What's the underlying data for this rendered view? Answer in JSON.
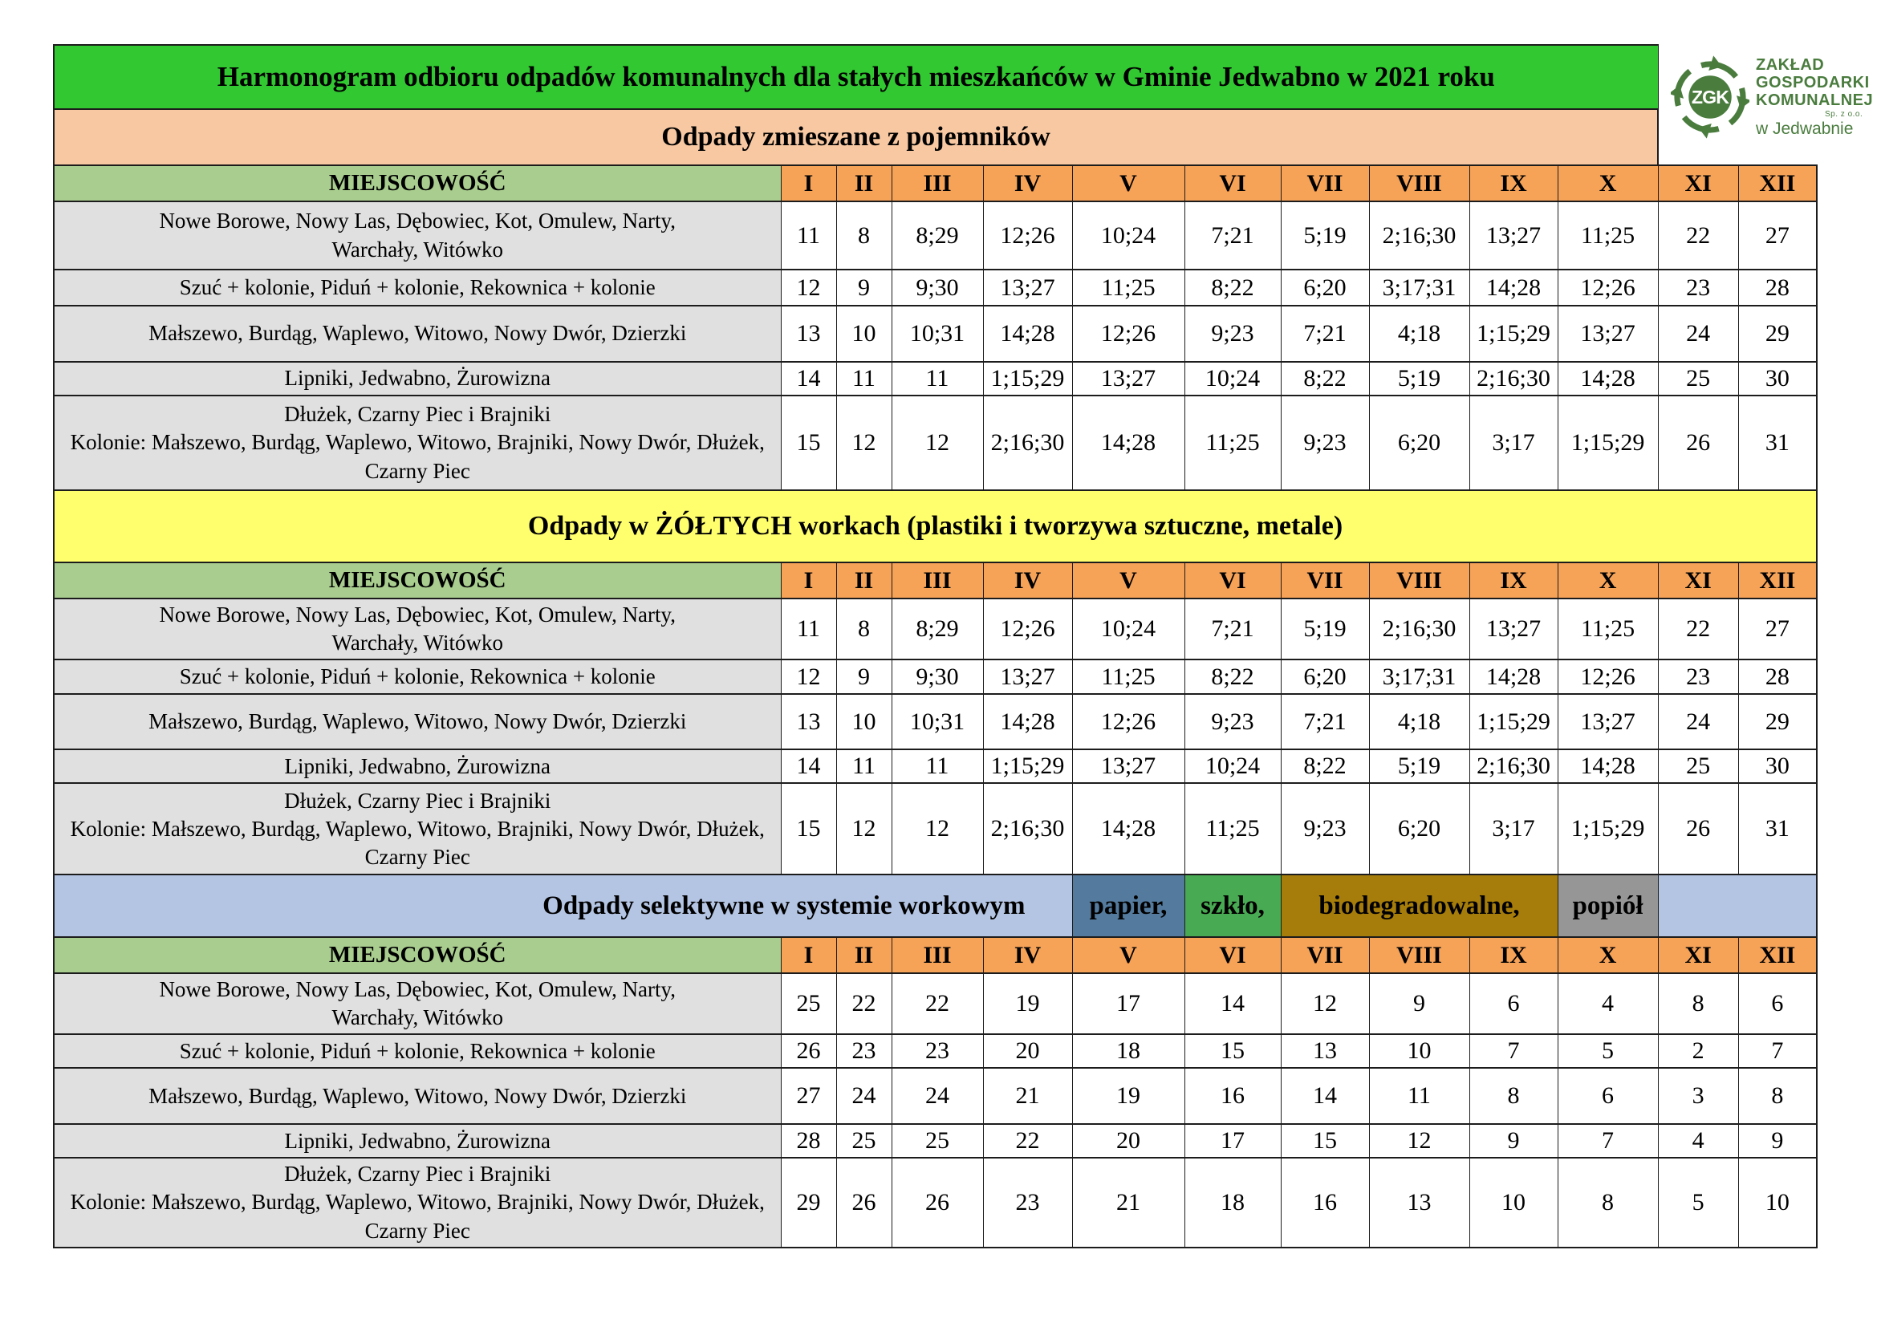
{
  "title": "Harmonogram odbioru odpadów komunalnych dla stałych mieszkańców w Gminie Jedwabno w 2021 roku",
  "logo": {
    "acronym": "ZGK",
    "company_lines": [
      "ZAKŁAD",
      "GOSPODARKI",
      "KOMUNALNEJ"
    ],
    "legal_form": "Sp. z o.o.",
    "location": "w Jedwabnie",
    "color": "#4a7c3e"
  },
  "location_column_header": "MIEJSCOWOŚĆ",
  "months": [
    "I",
    "II",
    "III",
    "IV",
    "V",
    "VI",
    "VII",
    "VIII",
    "IX",
    "X",
    "XI",
    "XII"
  ],
  "locations": [
    "Nowe Borowe, Nowy Las, Dębowiec, Kot, Omulew, Narty,\nWarchały, Witówko",
    "Szuć + kolonie, Piduń + kolonie, Rekownica + kolonie",
    "Małszewo, Burdąg, Waplewo, Witowo, Nowy Dwór, Dzierzki",
    "Lipniki, Jedwabno, Żurowizna",
    "Dłużek, Czarny Piec i Brajniki\nKolonie: Małszewo, Burdąg, Waplewo, Witowo, Brajniki, Nowy Dwór, Dłużek, Czarny Piec"
  ],
  "sections": [
    {
      "id": "zmieszane",
      "title": "Odpady zmieszane z pojemników",
      "band_color": "#f8c8a2",
      "rows": [
        [
          "11",
          "8",
          "8;29",
          "12;26",
          "10;24",
          "7;21",
          "5;19",
          "2;16;30",
          "13;27",
          "11;25",
          "22",
          "27"
        ],
        [
          "12",
          "9",
          "9;30",
          "13;27",
          "11;25",
          "8;22",
          "6;20",
          "3;17;31",
          "14;28",
          "12;26",
          "23",
          "28"
        ],
        [
          "13",
          "10",
          "10;31",
          "14;28",
          "12;26",
          "9;23",
          "7;21",
          "4;18",
          "1;15;29",
          "13;27",
          "24",
          "29"
        ],
        [
          "14",
          "11",
          "11",
          "1;15;29",
          "13;27",
          "10;24",
          "8;22",
          "5;19",
          "2;16;30",
          "14;28",
          "25",
          "30"
        ],
        [
          "15",
          "12",
          "12",
          "2;16;30",
          "14;28",
          "11;25",
          "9;23",
          "6;20",
          "3;17",
          "1;15;29",
          "26",
          "31"
        ]
      ]
    },
    {
      "id": "zolte-worki",
      "title": "Odpady w ŻÓŁTYCH workach (plastiki i tworzywa sztuczne, metale)",
      "band_color": "#ffff6e",
      "rows": [
        [
          "11",
          "8",
          "8;29",
          "12;26",
          "10;24",
          "7;21",
          "5;19",
          "2;16;30",
          "13;27",
          "11;25",
          "22",
          "27"
        ],
        [
          "12",
          "9",
          "9;30",
          "13;27",
          "11;25",
          "8;22",
          "6;20",
          "3;17;31",
          "14;28",
          "12;26",
          "23",
          "28"
        ],
        [
          "13",
          "10",
          "10;31",
          "14;28",
          "12;26",
          "9;23",
          "7;21",
          "4;18",
          "1;15;29",
          "13;27",
          "24",
          "29"
        ],
        [
          "14",
          "11",
          "11",
          "1;15;29",
          "13;27",
          "10;24",
          "8;22",
          "5;19",
          "2;16;30",
          "14;28",
          "25",
          "30"
        ],
        [
          "15",
          "12",
          "12",
          "2;16;30",
          "14;28",
          "11;25",
          "9;23",
          "6;20",
          "3;17",
          "1;15;29",
          "26",
          "31"
        ]
      ]
    },
    {
      "id": "selektywne",
      "title": "Odpady selektywne w systemie workowym",
      "band_color": "#b4c5e4",
      "segments": [
        {
          "label": "papier,",
          "color": "#547b9e"
        },
        {
          "label": "szkło,",
          "color": "#48aa52"
        },
        {
          "label": "biodegradowalne,",
          "color": "#a67c0a"
        },
        {
          "label": "popiół",
          "color": "#969696"
        }
      ],
      "rows": [
        [
          "25",
          "22",
          "22",
          "19",
          "17",
          "14",
          "12",
          "9",
          "6",
          "4",
          "8",
          "6"
        ],
        [
          "26",
          "23",
          "23",
          "20",
          "18",
          "15",
          "13",
          "10",
          "7",
          "5",
          "2",
          "7"
        ],
        [
          "27",
          "24",
          "24",
          "21",
          "19",
          "16",
          "14",
          "11",
          "8",
          "6",
          "3",
          "8"
        ],
        [
          "28",
          "25",
          "25",
          "22",
          "20",
          "17",
          "15",
          "12",
          "9",
          "7",
          "4",
          "9"
        ],
        [
          "29",
          "26",
          "26",
          "23",
          "21",
          "18",
          "16",
          "13",
          "10",
          "8",
          "5",
          "10"
        ]
      ]
    }
  ],
  "colors": {
    "title_band": "#31c831",
    "month_header": "#f6a257",
    "location_header": "#a9cd8e",
    "location_cell": "#e0e0e0",
    "logo_green": "#4a7c3e"
  }
}
